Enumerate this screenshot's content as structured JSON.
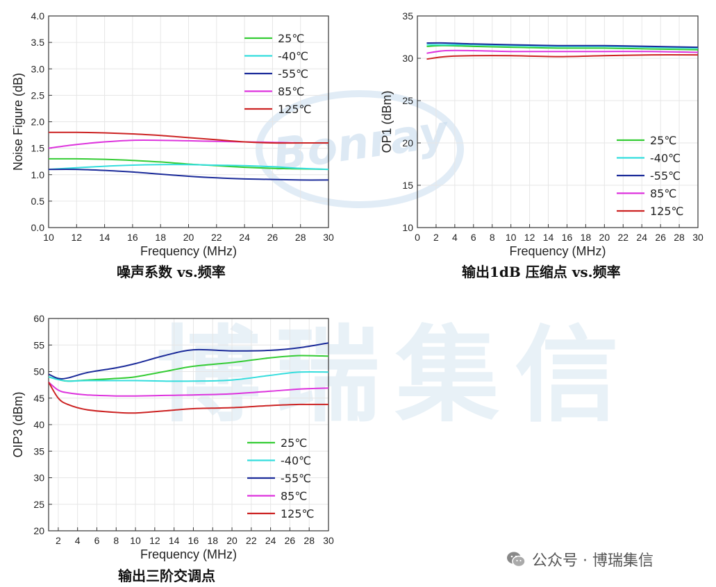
{
  "watermark": {
    "logo_text": "Bonray",
    "chinese": "博瑞集信"
  },
  "footer": {
    "text": "公众号 · 博瑞集信"
  },
  "series_colors": [
    "#33cc33",
    "#33dddd",
    "#1a2a99",
    "#dd33dd",
    "#cc2222"
  ],
  "chart_data": [
    {
      "id": "nf",
      "type": "line",
      "caption": "噪声系数 vs.频率",
      "xlabel": "Frequency (MHz)",
      "ylabel": "Noise Figure (dB)",
      "xlim": [
        10,
        30
      ],
      "ylim": [
        0.0,
        4.0
      ],
      "xticks": [
        10,
        12,
        14,
        16,
        18,
        20,
        22,
        24,
        26,
        28,
        30
      ],
      "xtick_labels": [
        "10",
        "12",
        "14",
        "16",
        "18",
        "20",
        "22",
        "24",
        "26",
        "28",
        "30"
      ],
      "yticks": [
        0.0,
        0.5,
        1.0,
        1.5,
        2.0,
        2.5,
        3.0,
        3.5,
        4.0
      ],
      "ytick_labels": [
        "0.0",
        "0.5",
        "1.0",
        "1.5",
        "2.0",
        "2.5",
        "3.0",
        "3.5",
        "4.0"
      ],
      "grid": true,
      "legend_position": "top-right",
      "series": [
        {
          "name": "25℃",
          "x": [
            10,
            12,
            14,
            16,
            18,
            20,
            22,
            24,
            26,
            28,
            30
          ],
          "y": [
            1.3,
            1.3,
            1.29,
            1.27,
            1.24,
            1.2,
            1.17,
            1.14,
            1.12,
            1.11,
            1.1
          ]
        },
        {
          "name": "-40℃",
          "x": [
            10,
            12,
            14,
            16,
            18,
            20,
            22,
            24,
            26,
            28,
            30
          ],
          "y": [
            1.1,
            1.13,
            1.16,
            1.18,
            1.19,
            1.19,
            1.18,
            1.17,
            1.15,
            1.12,
            1.1
          ]
        },
        {
          "name": "-55℃",
          "x": [
            10,
            12,
            14,
            16,
            18,
            20,
            22,
            24,
            26,
            28,
            30
          ],
          "y": [
            1.1,
            1.1,
            1.08,
            1.05,
            1.01,
            0.97,
            0.94,
            0.92,
            0.91,
            0.9,
            0.9
          ]
        },
        {
          "name": "85℃",
          "x": [
            10,
            12,
            14,
            16,
            18,
            20,
            22,
            24,
            26,
            28,
            30
          ],
          "y": [
            1.5,
            1.57,
            1.62,
            1.65,
            1.65,
            1.64,
            1.63,
            1.62,
            1.61,
            1.6,
            1.6
          ]
        },
        {
          "name": "125℃",
          "x": [
            10,
            12,
            14,
            16,
            18,
            20,
            22,
            24,
            26,
            28,
            30
          ],
          "y": [
            1.8,
            1.8,
            1.79,
            1.77,
            1.74,
            1.7,
            1.66,
            1.62,
            1.6,
            1.6,
            1.6
          ]
        }
      ]
    },
    {
      "id": "op1",
      "type": "line",
      "caption": "输出1dB 压缩点 vs.频率",
      "xlabel": "Frequency (MHz)",
      "ylabel": "OP1 (dBm)",
      "xlim": [
        0,
        30
      ],
      "ylim": [
        10,
        35
      ],
      "xticks": [
        0,
        2,
        4,
        6,
        8,
        10,
        12,
        14,
        16,
        18,
        20,
        22,
        24,
        26,
        28,
        30
      ],
      "xtick_labels": [
        "0",
        "2",
        "4",
        "6",
        "8",
        "10",
        "12",
        "14",
        "16",
        "18",
        "20",
        "22",
        "24",
        "26",
        "28",
        "30"
      ],
      "yticks": [
        10,
        15,
        20,
        25,
        30,
        35
      ],
      "ytick_labels": [
        "10",
        "15",
        "20",
        "25",
        "30",
        "35"
      ],
      "grid": true,
      "legend_position": "center-right",
      "series": [
        {
          "name": "25℃",
          "x": [
            1,
            3,
            6,
            10,
            15,
            20,
            25,
            30
          ],
          "y": [
            31.4,
            31.5,
            31.4,
            31.3,
            31.2,
            31.2,
            31.1,
            31.0
          ]
        },
        {
          "name": "-40℃",
          "x": [
            1,
            3,
            6,
            10,
            15,
            20,
            25,
            30
          ],
          "y": [
            31.6,
            31.6,
            31.6,
            31.5,
            31.4,
            31.4,
            31.3,
            31.2
          ]
        },
        {
          "name": "-55℃",
          "x": [
            1,
            3,
            6,
            10,
            15,
            20,
            25,
            30
          ],
          "y": [
            31.8,
            31.8,
            31.7,
            31.6,
            31.5,
            31.5,
            31.4,
            31.3
          ]
        },
        {
          "name": "85℃",
          "x": [
            1,
            3,
            6,
            10,
            15,
            20,
            25,
            30
          ],
          "y": [
            30.6,
            30.9,
            30.9,
            30.8,
            30.8,
            30.8,
            30.8,
            30.7
          ]
        },
        {
          "name": "125℃",
          "x": [
            1,
            3,
            6,
            10,
            15,
            20,
            25,
            30
          ],
          "y": [
            29.9,
            30.2,
            30.3,
            30.3,
            30.2,
            30.3,
            30.4,
            30.4
          ]
        }
      ]
    },
    {
      "id": "oip3",
      "type": "line",
      "caption": "输出三阶交调点",
      "xlabel": "Frequency (MHz)",
      "ylabel": "OIP3 (dBm)",
      "xlim": [
        1,
        30
      ],
      "ylim": [
        20,
        60
      ],
      "xticks": [
        2,
        4,
        6,
        8,
        10,
        12,
        14,
        16,
        18,
        20,
        22,
        24,
        26,
        28,
        30
      ],
      "xtick_labels": [
        "2",
        "4",
        "6",
        "8",
        "10",
        "12",
        "14",
        "16",
        "18",
        "20",
        "22",
        "24",
        "26",
        "28",
        "30"
      ],
      "yticks": [
        20,
        25,
        30,
        35,
        40,
        45,
        50,
        55,
        60
      ],
      "ytick_labels": [
        "20",
        "25",
        "30",
        "35",
        "40",
        "45",
        "50",
        "55",
        "60"
      ],
      "grid": true,
      "legend_position": "bottom-right",
      "series": [
        {
          "name": "25℃",
          "x": [
            1,
            2,
            3,
            5,
            8,
            10,
            13,
            16,
            20,
            24,
            27,
            30
          ],
          "y": [
            49.0,
            48.5,
            48.2,
            48.4,
            48.7,
            49.0,
            50.0,
            51.0,
            51.7,
            52.6,
            53.0,
            52.9
          ]
        },
        {
          "name": "-40℃",
          "x": [
            1,
            2,
            3,
            5,
            8,
            10,
            13,
            16,
            20,
            24,
            27,
            30
          ],
          "y": [
            49.0,
            48.5,
            48.2,
            48.3,
            48.3,
            48.3,
            48.2,
            48.2,
            48.4,
            49.3,
            49.9,
            49.9
          ]
        },
        {
          "name": "-55℃",
          "x": [
            1,
            2,
            3,
            5,
            8,
            10,
            13,
            16,
            20,
            24,
            27,
            30
          ],
          "y": [
            49.5,
            48.7,
            48.8,
            49.8,
            50.7,
            51.5,
            53.0,
            54.1,
            53.9,
            54.0,
            54.5,
            55.4
          ]
        },
        {
          "name": "85℃",
          "x": [
            1,
            2,
            3,
            5,
            8,
            10,
            13,
            16,
            20,
            24,
            27,
            30
          ],
          "y": [
            48.0,
            46.5,
            46.0,
            45.6,
            45.4,
            45.4,
            45.5,
            45.6,
            45.8,
            46.3,
            46.7,
            46.9
          ]
        },
        {
          "name": "125℃",
          "x": [
            1,
            2,
            3,
            5,
            8,
            10,
            13,
            16,
            20,
            24,
            27,
            30
          ],
          "y": [
            48.0,
            45.0,
            43.8,
            42.8,
            42.3,
            42.2,
            42.6,
            43.0,
            43.2,
            43.6,
            43.8,
            43.8
          ]
        }
      ]
    }
  ]
}
